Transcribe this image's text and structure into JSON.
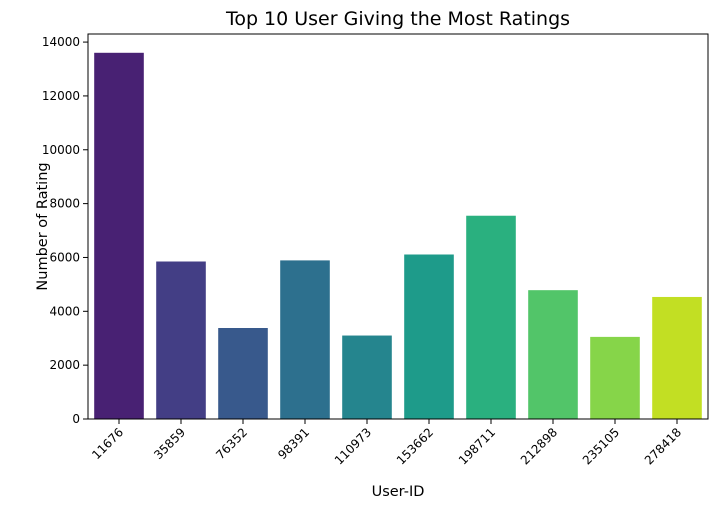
{
  "chart_data": {
    "type": "bar",
    "title": "Top 10 User Giving the Most Ratings",
    "xlabel": "User-ID",
    "ylabel": "Number of Rating",
    "categories": [
      "11676",
      "35859",
      "76352",
      "98391",
      "110973",
      "153662",
      "198711",
      "212898",
      "235105",
      "278418"
    ],
    "values": [
      13602,
      5850,
      3380,
      5891,
      3100,
      6110,
      7550,
      4785,
      3050,
      4533
    ],
    "yticks": [
      0,
      2000,
      4000,
      6000,
      8000,
      10000,
      12000,
      14000
    ],
    "ylim": [
      0,
      14300
    ],
    "grid": false,
    "legend": "none",
    "colors": [
      "#482173",
      "#433e85",
      "#38598c",
      "#2d708e",
      "#25858e",
      "#1e9b8a",
      "#2ab07f",
      "#52c569",
      "#86d549",
      "#c2df23"
    ]
  }
}
